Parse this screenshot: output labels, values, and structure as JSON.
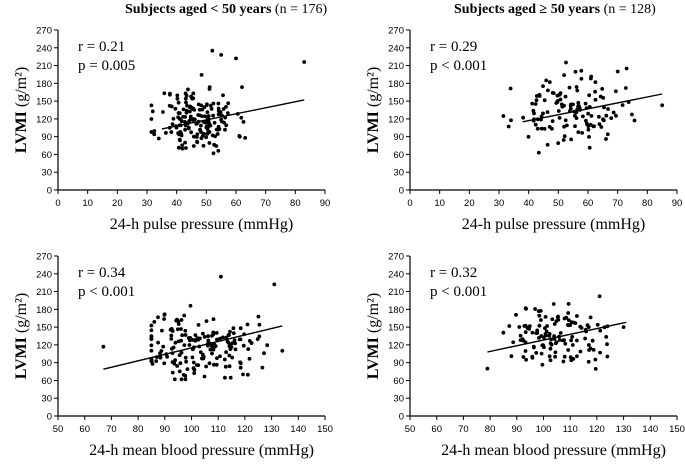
{
  "column_titles": [
    {
      "bold": "Subjects aged < 50 years",
      "rest": " (n = 176)"
    },
    {
      "bold": "Subjects aged ≥ 50 years",
      "rest": " (n = 128)"
    }
  ],
  "chart_data": [
    {
      "type": "scatter",
      "title": "Subjects aged < 50 years (n = 176)",
      "xlabel": "24-h pulse pressure (mmHg)",
      "ylabel": "LVMI (g/m²)",
      "xlim": [
        0,
        90
      ],
      "ylim": [
        0,
        270
      ],
      "xticks": [
        0,
        10,
        20,
        30,
        40,
        50,
        60,
        70,
        80,
        90
      ],
      "yticks": [
        0,
        30,
        60,
        90,
        120,
        150,
        180,
        210,
        240,
        270
      ],
      "annotations": [
        "r = 0.21",
        "p = 0.005"
      ],
      "x_center": 47,
      "x_spread": 6.5,
      "y_center": 118,
      "y_spread": 28,
      "n": 176,
      "seed": 11,
      "extra_points": [
        [
          83,
          216
        ],
        [
          52,
          235
        ],
        [
          55,
          228
        ],
        [
          60,
          222
        ]
      ],
      "regression": {
        "x": [
          35,
          83
        ],
        "y": [
          103,
          152
        ]
      }
    },
    {
      "type": "scatter",
      "title": "Subjects aged ≥ 50 years (n = 128)",
      "xlabel": "24-h pulse pressure (mmHg)",
      "ylabel": "LVMI (g/m²)",
      "xlim": [
        0,
        90
      ],
      "ylim": [
        0,
        270
      ],
      "xticks": [
        0,
        10,
        20,
        30,
        40,
        50,
        60,
        70,
        80,
        90
      ],
      "yticks": [
        0,
        30,
        60,
        90,
        120,
        150,
        180,
        210,
        240,
        270
      ],
      "annotations": [
        "r = 0.29",
        "p < 0.001"
      ],
      "x_center": 53,
      "x_spread": 9,
      "y_center": 132,
      "y_spread": 27,
      "n": 128,
      "seed": 23,
      "extra_points": [
        [
          73,
          205
        ],
        [
          70,
          200
        ],
        [
          85,
          143
        ]
      ],
      "regression": {
        "x": [
          38,
          85
        ],
        "y": [
          115,
          162
        ]
      }
    },
    {
      "type": "scatter",
      "title": "",
      "xlabel": "24-h mean blood pressure (mmHg)",
      "ylabel": "LVMI (g/m²)",
      "xlim": [
        50,
        150
      ],
      "ylim": [
        0,
        270
      ],
      "xticks": [
        50,
        60,
        70,
        80,
        90,
        100,
        110,
        120,
        130,
        140,
        150
      ],
      "yticks": [
        0,
        30,
        60,
        90,
        120,
        150,
        180,
        210,
        240,
        270
      ],
      "annotations": [
        "r = 0.34",
        "p < 0.001"
      ],
      "x_center": 102,
      "x_spread": 11,
      "y_center": 118,
      "y_spread": 28,
      "n": 176,
      "seed": 37,
      "extra_points": [
        [
          67,
          117
        ],
        [
          131,
          222
        ],
        [
          134,
          110
        ],
        [
          111,
          235
        ]
      ],
      "regression": {
        "x": [
          67,
          134
        ],
        "y": [
          79,
          152
        ]
      }
    },
    {
      "type": "scatter",
      "title": "",
      "xlabel": "24-h mean blood pressure (mmHg)",
      "ylabel": "LVMI (g/m²)",
      "xlim": [
        50,
        150
      ],
      "ylim": [
        0,
        270
      ],
      "xticks": [
        50,
        60,
        70,
        80,
        90,
        100,
        110,
        120,
        130,
        140,
        150
      ],
      "yticks": [
        0,
        30,
        60,
        90,
        120,
        150,
        180,
        210,
        240,
        270
      ],
      "annotations": [
        "r = 0.32",
        "p < 0.001"
      ],
      "x_center": 104,
      "x_spread": 10,
      "y_center": 133,
      "y_spread": 26,
      "n": 128,
      "seed": 51,
      "extra_points": [
        [
          79,
          80
        ],
        [
          121,
          202
        ],
        [
          130,
          150
        ]
      ],
      "regression": {
        "x": [
          79,
          131
        ],
        "y": [
          108,
          158
        ]
      }
    }
  ]
}
